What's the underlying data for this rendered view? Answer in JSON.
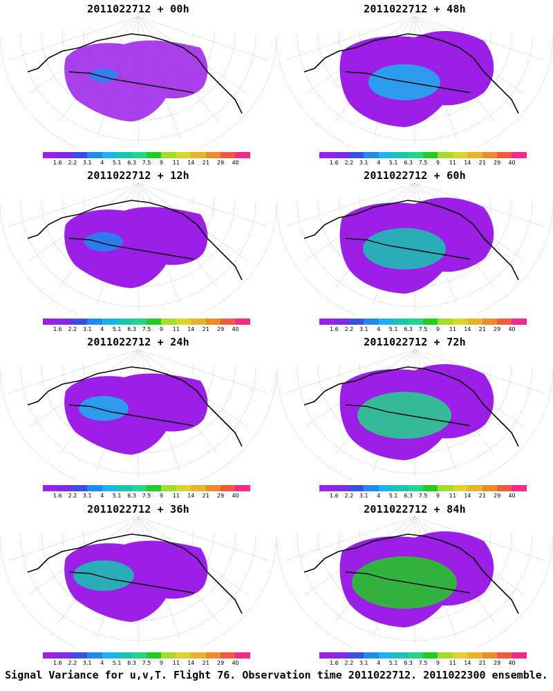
{
  "panels": [
    {
      "id": "p00",
      "title": "2011022712 + 00h"
    },
    {
      "id": "p48",
      "title": "2011022712 + 48h"
    },
    {
      "id": "p12",
      "title": "2011022712 + 12h"
    },
    {
      "id": "p60",
      "title": "2011022712 + 60h"
    },
    {
      "id": "p24",
      "title": "2011022712 + 24h"
    },
    {
      "id": "p72",
      "title": "2011022712 + 72h"
    },
    {
      "id": "p36",
      "title": "2011022712 + 36h"
    },
    {
      "id": "p84",
      "title": "2011022712 + 84h"
    }
  ],
  "colorbar": {
    "labels": [
      "1.6",
      "2.2",
      "3.1",
      "4",
      "5.1",
      "6.3",
      "7.5",
      "9",
      "11",
      "14",
      "21",
      "29",
      "40"
    ],
    "colors": [
      "#9b1fe6",
      "#7d2be8",
      "#3a4fe0",
      "#1e8bef",
      "#1bb2f0",
      "#17c6b2",
      "#23d58b",
      "#22cc22",
      "#a3dc2e",
      "#dcd42a",
      "#e6b32a",
      "#ee8a2a",
      "#f25a3c",
      "#f22a8a"
    ]
  },
  "footer": "Signal Variance for u,v,T. Flight 76. Observation time 2011022712. 2011022300 ensemble."
}
